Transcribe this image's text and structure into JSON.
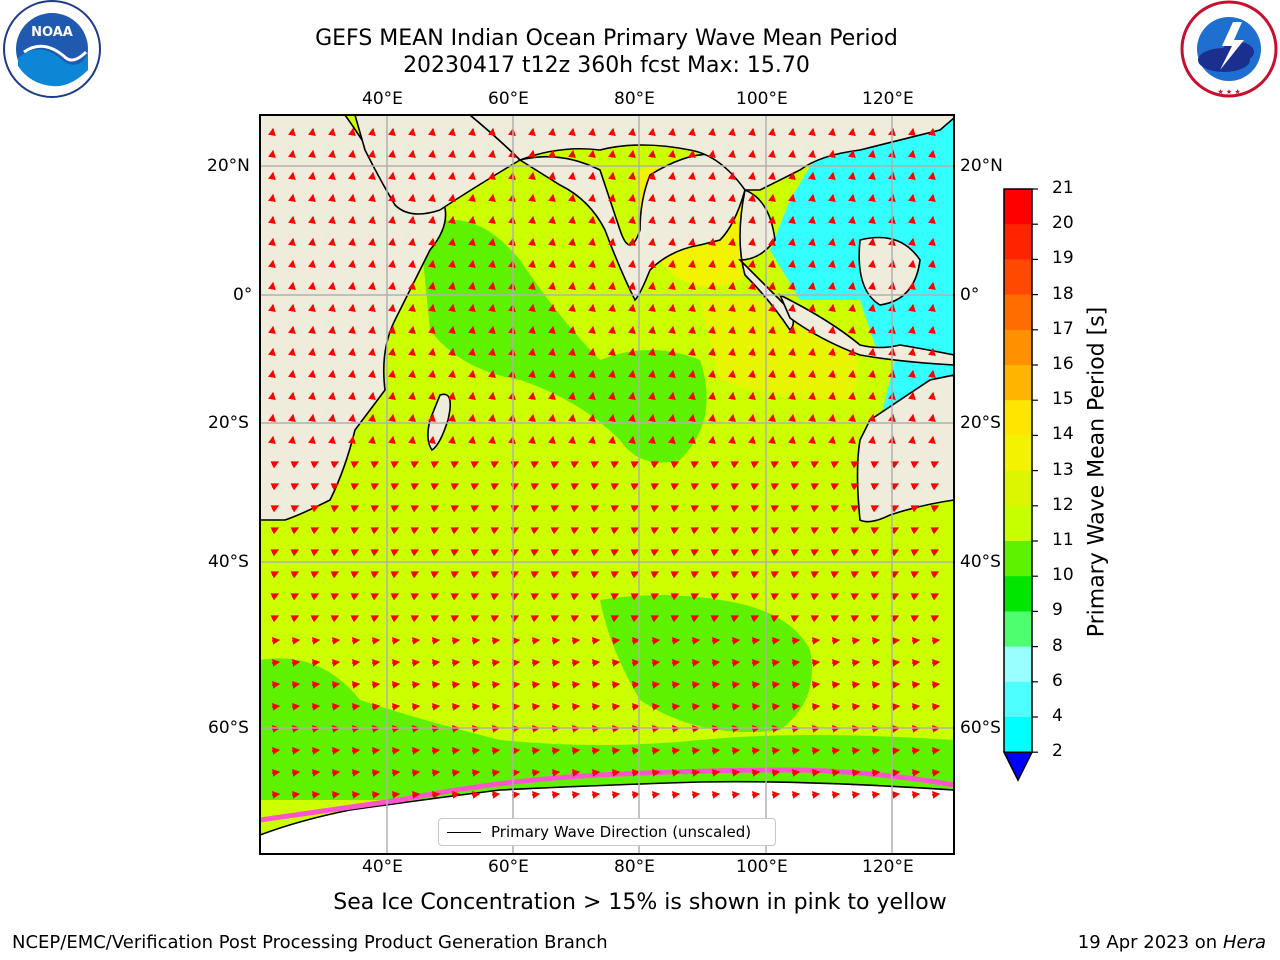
{
  "header": {
    "title_line1": "GEFS MEAN Indian Ocean Primary Wave Mean Period",
    "title_line2": "20230417 t12z 360h fcst   Max: 15.70"
  },
  "logos": {
    "left": {
      "name": "NOAA",
      "ring_text": "NATIONAL OCEANIC AND ATMOSPHERIC ADMINISTRATION · U.S. DEPARTMENT OF COMMERCE"
    },
    "right": {
      "name": "National Weather Service",
      "ring_text": "NATIONAL WEATHER SERVICE"
    }
  },
  "map": {
    "projection": "plate carree",
    "lon_range": [
      20,
      130
    ],
    "lat_range": [
      -72,
      28
    ],
    "lon_ticks": [
      "40°E",
      "60°E",
      "80°E",
      "100°E",
      "120°E"
    ],
    "lat_ticks_left": [
      "20°N",
      "0°",
      "20°S",
      "40°S",
      "60°S"
    ],
    "lat_ticks_right": [
      "20°N",
      "0°",
      "20°S",
      "40°S",
      "60°S"
    ],
    "legend_label": "Primary Wave Direction (unscaled)",
    "colors": {
      "land": "#efecdc",
      "ocean_main": "#ccff00",
      "ocean_mid": "#5ff200",
      "ocean_high": "#f3f300",
      "coastal": "#33ffff",
      "arrow": "#ff0000",
      "ice": "#ff55cc"
    }
  },
  "colorbar": {
    "label": "Primary Wave Mean Period [s]",
    "ticks": [
      "21",
      "20",
      "19",
      "18",
      "17",
      "16",
      "15",
      "14",
      "13",
      "12",
      "11",
      "10",
      "9",
      "8",
      "6",
      "4",
      "2"
    ],
    "colors_top_to_bottom": [
      "#ff0000",
      "#ff2400",
      "#ff4800",
      "#ff6c00",
      "#ff9000",
      "#ffb400",
      "#ffe600",
      "#f3f300",
      "#dcf500",
      "#c6ff00",
      "#5ff200",
      "#00e600",
      "#4dff6e",
      "#9affff",
      "#4dffff",
      "#00ffff",
      "#0080ff"
    ],
    "under_color": "#0000ff"
  },
  "caption": "Sea Ice Concentration > 15% is shown in pink to yellow",
  "footer": {
    "left": "NCEP/EMC/Verification Post Processing Product Generation Branch",
    "right_prefix": "19 Apr 2023 on ",
    "right_host": "Hera"
  }
}
